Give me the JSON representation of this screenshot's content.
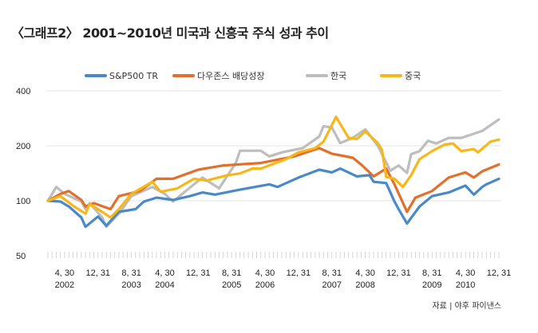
{
  "title": "〈그래프2〉 2001~2010년 미국과 신흥국 주식 성과 추이",
  "source": "자료 | 야후 파이낸스",
  "chart_data": {
    "type": "line",
    "title": "〈그래프2〉 2001~2010년 미국과 신흥국 주식 성과 추이",
    "xlabel": "",
    "ylabel": "",
    "y_scale": "log",
    "ylim": [
      50,
      400
    ],
    "y_ticks": [
      "50",
      "100",
      "200",
      "400"
    ],
    "x_range": [
      "2001-12",
      "2010-12"
    ],
    "x_ticks": [
      {
        "date": "2002-04",
        "label1": "4, 30",
        "label2": "2002"
      },
      {
        "date": "2002-12",
        "label1": "12, 31",
        "label2": ""
      },
      {
        "date": "2003-08",
        "label1": "8, 31",
        "label2": "2003"
      },
      {
        "date": "2004-04",
        "label1": "4, 30",
        "label2": "2004"
      },
      {
        "date": "2004-12",
        "label1": "12, 31",
        "label2": ""
      },
      {
        "date": "2005-08",
        "label1": "8, 31",
        "label2": "2005"
      },
      {
        "date": "2006-04",
        "label1": "4, 30",
        "label2": "2006"
      },
      {
        "date": "2006-12",
        "label1": "12, 31",
        "label2": ""
      },
      {
        "date": "2007-08",
        "label1": "8, 31",
        "label2": "2007"
      },
      {
        "date": "2008-04",
        "label1": "4, 30",
        "label2": "2008"
      },
      {
        "date": "2008-12",
        "label1": "12, 31",
        "label2": ""
      },
      {
        "date": "2009-08",
        "label1": "8, 31",
        "label2": "2009"
      },
      {
        "date": "2010-04",
        "label1": "4, 30",
        "label2": "2010"
      },
      {
        "date": "2010-12",
        "label1": "12, 31",
        "label2": ""
      }
    ],
    "grid": true,
    "legend": "top",
    "series": [
      {
        "name": "S&P500 TR",
        "color": "#4a89c8",
        "points": [
          [
            "2001-12",
            100
          ],
          [
            "2002-03",
            99
          ],
          [
            "2002-05",
            93
          ],
          [
            "2002-08",
            81
          ],
          [
            "2002-09",
            72
          ],
          [
            "2002-12",
            82
          ],
          [
            "2003-02",
            73
          ],
          [
            "2003-05",
            87
          ],
          [
            "2003-09",
            90
          ],
          [
            "2003-11",
            99
          ],
          [
            "2004-02",
            104
          ],
          [
            "2004-06",
            101
          ],
          [
            "2004-10",
            106
          ],
          [
            "2005-01",
            111
          ],
          [
            "2005-04",
            108
          ],
          [
            "2005-10",
            115
          ],
          [
            "2006-05",
            123
          ],
          [
            "2006-07",
            119
          ],
          [
            "2006-12",
            134
          ],
          [
            "2007-05",
            148
          ],
          [
            "2007-08",
            143
          ],
          [
            "2007-10",
            150
          ],
          [
            "2008-02",
            136
          ],
          [
            "2008-05",
            138
          ],
          [
            "2008-06",
            127
          ],
          [
            "2008-09",
            125
          ],
          [
            "2008-11",
            99
          ],
          [
            "2008-12",
            90
          ],
          [
            "2009-02",
            75
          ],
          [
            "2009-05",
            93
          ],
          [
            "2009-08",
            106
          ],
          [
            "2009-12",
            111
          ],
          [
            "2010-04",
            121
          ],
          [
            "2010-06",
            108
          ],
          [
            "2010-08",
            119
          ],
          [
            "2010-09",
            123
          ],
          [
            "2010-12",
            132
          ]
        ]
      },
      {
        "name": "다우존스 배당성장",
        "color": "#e36f2c",
        "points": [
          [
            "2001-12",
            100
          ],
          [
            "2002-03",
            109
          ],
          [
            "2002-05",
            113
          ],
          [
            "2002-08",
            101
          ],
          [
            "2002-09",
            93
          ],
          [
            "2002-11",
            97
          ],
          [
            "2003-03",
            90
          ],
          [
            "2003-05",
            106
          ],
          [
            "2003-10",
            113
          ],
          [
            "2004-02",
            132
          ],
          [
            "2004-06",
            132
          ],
          [
            "2004-12",
            148
          ],
          [
            "2005-06",
            156
          ],
          [
            "2006-03",
            161
          ],
          [
            "2006-11",
            175
          ],
          [
            "2007-05",
            194
          ],
          [
            "2007-08",
            181
          ],
          [
            "2008-01",
            172
          ],
          [
            "2008-03",
            158
          ],
          [
            "2008-06",
            136
          ],
          [
            "2008-09",
            150
          ],
          [
            "2008-11",
            123
          ],
          [
            "2009-02",
            87
          ],
          [
            "2009-04",
            104
          ],
          [
            "2009-08",
            113
          ],
          [
            "2009-12",
            134
          ],
          [
            "2010-04",
            143
          ],
          [
            "2010-06",
            134
          ],
          [
            "2010-08",
            145
          ],
          [
            "2010-12",
            158
          ]
        ]
      },
      {
        "name": "한국",
        "color": "#bdbdbd",
        "points": [
          [
            "2001-12",
            100
          ],
          [
            "2002-02",
            119
          ],
          [
            "2002-04",
            109
          ],
          [
            "2002-08",
            99
          ],
          [
            "2002-09",
            90
          ],
          [
            "2002-10",
            97
          ],
          [
            "2003-01",
            81
          ],
          [
            "2003-02",
            72
          ],
          [
            "2003-05",
            85
          ],
          [
            "2003-08",
            106
          ],
          [
            "2004-01",
            119
          ],
          [
            "2004-04",
            109
          ],
          [
            "2004-06",
            99
          ],
          [
            "2004-09",
            113
          ],
          [
            "2005-01",
            134
          ],
          [
            "2005-05",
            117
          ],
          [
            "2005-09",
            161
          ],
          [
            "2005-10",
            188
          ],
          [
            "2006-03",
            188
          ],
          [
            "2006-05",
            175
          ],
          [
            "2006-08",
            184
          ],
          [
            "2006-11",
            190
          ],
          [
            "2007-01",
            194
          ],
          [
            "2007-05",
            225
          ],
          [
            "2007-06",
            256
          ],
          [
            "2007-08",
            252
          ],
          [
            "2007-10",
            207
          ],
          [
            "2008-01",
            221
          ],
          [
            "2008-04",
            246
          ],
          [
            "2008-07",
            200
          ],
          [
            "2008-10",
            146
          ],
          [
            "2008-12",
            156
          ],
          [
            "2009-02",
            142
          ],
          [
            "2009-03",
            180
          ],
          [
            "2009-05",
            187
          ],
          [
            "2009-07",
            213
          ],
          [
            "2009-09",
            206
          ],
          [
            "2009-12",
            221
          ],
          [
            "2010-03",
            221
          ],
          [
            "2010-08",
            241
          ],
          [
            "2010-12",
            279
          ]
        ]
      },
      {
        "name": "중국",
        "color": "#f7b718",
        "points": [
          [
            "2001-12",
            100
          ],
          [
            "2002-03",
            106
          ],
          [
            "2002-06",
            94
          ],
          [
            "2002-09",
            85
          ],
          [
            "2002-10",
            96
          ],
          [
            "2003-01",
            87
          ],
          [
            "2003-03",
            81
          ],
          [
            "2003-05",
            90
          ],
          [
            "2003-08",
            109
          ],
          [
            "2004-01",
            127
          ],
          [
            "2004-03",
            112
          ],
          [
            "2004-07",
            117
          ],
          [
            "2004-11",
            132
          ],
          [
            "2005-02",
            129
          ],
          [
            "2005-07",
            138
          ],
          [
            "2005-10",
            141
          ],
          [
            "2006-01",
            150
          ],
          [
            "2006-03",
            150
          ],
          [
            "2006-09",
            169
          ],
          [
            "2006-12",
            184
          ],
          [
            "2007-04",
            194
          ],
          [
            "2007-06",
            211
          ],
          [
            "2007-09",
            288
          ],
          [
            "2007-12",
            221
          ],
          [
            "2008-02",
            218
          ],
          [
            "2008-04",
            240
          ],
          [
            "2008-07",
            207
          ],
          [
            "2008-08",
            190
          ],
          [
            "2008-09",
            135
          ],
          [
            "2008-11",
            132
          ],
          [
            "2009-01",
            119
          ],
          [
            "2009-03",
            138
          ],
          [
            "2009-05",
            169
          ],
          [
            "2009-08",
            187
          ],
          [
            "2009-11",
            203
          ],
          [
            "2010-01",
            206
          ],
          [
            "2010-03",
            187
          ],
          [
            "2010-06",
            192
          ],
          [
            "2010-07",
            184
          ],
          [
            "2010-10",
            211
          ],
          [
            "2010-12",
            216
          ]
        ]
      }
    ]
  }
}
